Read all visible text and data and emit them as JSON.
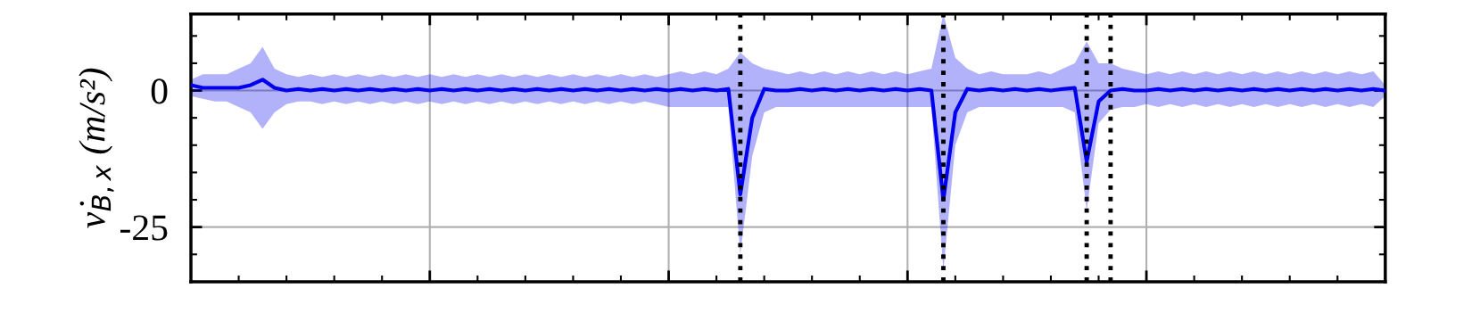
{
  "chart_data": {
    "type": "line",
    "ylabel": "v̇$_{B,x}$ (m/s²)",
    "categories": [
      null,
      null,
      null,
      null,
      null,
      null,
      null,
      null,
      null,
      null,
      null,
      null,
      null,
      null,
      null,
      null,
      null,
      null,
      null,
      null,
      null,
      null,
      null,
      null,
      null,
      null,
      null,
      null,
      null,
      null,
      null,
      null,
      null,
      null,
      null,
      null,
      null,
      null,
      null,
      null,
      null,
      null,
      null,
      null,
      null,
      null,
      null,
      null,
      null,
      null,
      null,
      null,
      null,
      null,
      null,
      null,
      null,
      null,
      null,
      null,
      null,
      null,
      null,
      null,
      null,
      null,
      null,
      null,
      null,
      null,
      null,
      null,
      null,
      null,
      null,
      null,
      null,
      null,
      null,
      null,
      null,
      null,
      null,
      null,
      null,
      null,
      null,
      null,
      null,
      null,
      null,
      null,
      null,
      null,
      null,
      null,
      null,
      null,
      null,
      null,
      null
    ],
    "series": [
      {
        "color": "#0000ee",
        "values": [
          1,
          0.5,
          0.5,
          0.5,
          0.5,
          1,
          2,
          0.5,
          0,
          0.3,
          0,
          0.3,
          0,
          0.3,
          0,
          0.3,
          0,
          0.3,
          0,
          0.3,
          0,
          0.3,
          0,
          0.3,
          0,
          0.3,
          0,
          0.3,
          0,
          0.3,
          0,
          0.3,
          0,
          0.3,
          0,
          0.3,
          0,
          0.3,
          0,
          0.3,
          0,
          0.3,
          0,
          0.3,
          0,
          0.3,
          -19,
          -5,
          0.3,
          0,
          0,
          0.3,
          0,
          0.3,
          0,
          0.3,
          0,
          0.3,
          0,
          0.3,
          0,
          0.3,
          0,
          -20,
          -4,
          0.3,
          0,
          0.3,
          0,
          0.3,
          0,
          0.3,
          0,
          0.3,
          0.5,
          -13,
          -2,
          0,
          0.3,
          0,
          0,
          0.3,
          0,
          0.3,
          0,
          0.3,
          0,
          0.3,
          0,
          0.3,
          0,
          0.3,
          0,
          0.3,
          0,
          0.3,
          0,
          0.3,
          0,
          0.3,
          0
        ],
        "lower": [
          -1,
          -1.5,
          -2,
          -2,
          -3,
          -4,
          -7,
          -4,
          -2.5,
          -2,
          -2,
          -2.5,
          -2,
          -2.5,
          -2,
          -2.5,
          -2,
          -2.5,
          -2,
          -2.5,
          -2,
          -2.5,
          -2,
          -2.5,
          -2,
          -2.5,
          -2,
          -2.5,
          -2,
          -2.5,
          -2,
          -2.5,
          -2,
          -2.5,
          -2,
          -2.5,
          -2,
          -2.5,
          -2,
          -2.5,
          -3,
          -3,
          -3,
          -3,
          -3,
          -3,
          -30,
          -12,
          -4,
          -3,
          -3,
          -3,
          -3,
          -3,
          -3,
          -3,
          -3,
          -3,
          -3,
          -3,
          -3,
          -3,
          -3,
          -33,
          -10,
          -4,
          -3,
          -3,
          -3,
          -3,
          -3,
          -3,
          -3,
          -3,
          -4,
          -22,
          -6,
          -3.5,
          -3,
          -3,
          -2.5,
          -3,
          -2.5,
          -3,
          -2.5,
          -3,
          -2.5,
          -3,
          -2.5,
          -3,
          -2.5,
          -3,
          -2.5,
          -3,
          -2.5,
          -3,
          -2.5,
          -3,
          -2.5,
          -3,
          -1
        ],
        "upper": [
          2,
          3,
          3,
          3,
          4,
          5,
          8,
          4,
          3,
          2.5,
          3,
          2.5,
          3,
          2.5,
          3,
          2.5,
          3,
          2.5,
          3,
          2.5,
          3,
          2.5,
          3,
          2.5,
          3,
          2.5,
          3,
          2.5,
          3,
          2.5,
          3,
          2.5,
          3,
          2.5,
          3,
          2.5,
          3,
          2.5,
          3,
          2.5,
          3,
          3.5,
          3,
          3.5,
          3,
          4,
          7,
          5,
          4,
          3.5,
          3,
          3.5,
          3,
          3.5,
          3,
          3.5,
          3,
          3.5,
          3,
          3.5,
          3,
          3.5,
          4,
          14,
          6,
          4,
          3,
          3.5,
          3,
          3,
          3,
          3.5,
          3,
          4,
          5,
          9,
          5,
          5,
          4,
          3.5,
          3,
          3.5,
          3,
          3.5,
          3,
          3.5,
          3,
          3.5,
          3,
          3.5,
          3,
          3.5,
          3,
          3.5,
          3,
          3.5,
          3,
          3.5,
          3,
          3.5,
          1
        ]
      }
    ],
    "ylim": [
      -35,
      14
    ],
    "yticks": [
      -25,
      0
    ],
    "tick_labels": "y",
    "grid": true,
    "marker": "none",
    "line_style": "solid"
  }
}
